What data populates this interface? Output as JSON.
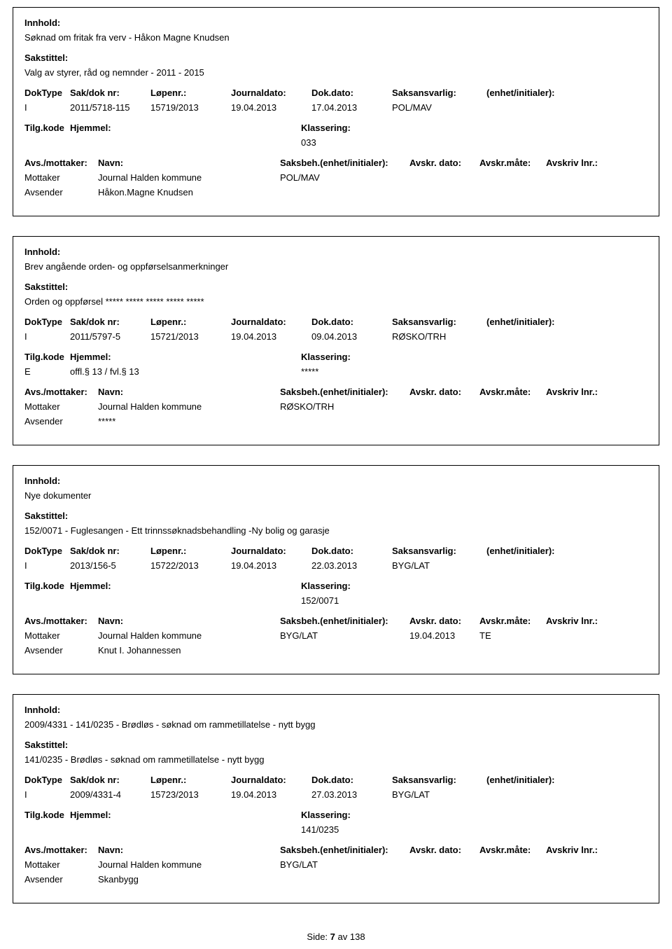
{
  "labels": {
    "innhold": "Innhold:",
    "sakstittel": "Sakstittel:",
    "doktype": "DokType",
    "sakdoknr": "Sak/dok nr:",
    "lopenr": "Løpenr.:",
    "journaldato": "Journaldato:",
    "dokdato": "Dok.dato:",
    "saksansvarlig": "Saksansvarlig:",
    "enhet": "(enhet/initialer):",
    "tilgkode": "Tilg.kode",
    "hjemmel": "Hjemmel:",
    "klassering": "Klassering:",
    "avsmottaker": "Avs./mottaker:",
    "navn": "Navn:",
    "saksbeh": "Saksbeh.",
    "saksbeh_enhet": "(enhet/initialer):",
    "avskrdato": "Avskr. dato:",
    "avskrmate": "Avskr.måte:",
    "avskrivlnr": "Avskriv lnr.:",
    "mottaker": "Mottaker",
    "avsender": "Avsender"
  },
  "records": [
    {
      "innhold": "Søknad om fritak fra verv - Håkon Magne Knudsen",
      "sakstittel": "Valg av styrer, råd og nemnder - 2011 - 2015",
      "doktype": "I",
      "sakdoknr": "2011/5718-115",
      "lopenr": "15719/2013",
      "journaldato": "19.04.2013",
      "dokdato": "17.04.2013",
      "saksansvarlig": "POL/MAV",
      "enhet": "",
      "tilgkode": "",
      "hjemmel": "",
      "klassering": "033",
      "parties": [
        {
          "role": "Mottaker",
          "navn": "Journal Halden kommune",
          "saksbeh": "POL/MAV",
          "avskrdato": "",
          "avskrmate": "",
          "avskrivlnr": ""
        },
        {
          "role": "Avsender",
          "navn": "Håkon.Magne Knudsen",
          "saksbeh": "",
          "avskrdato": "",
          "avskrmate": "",
          "avskrivlnr": ""
        }
      ]
    },
    {
      "innhold": "Brev angående orden- og oppførselsanmerkninger",
      "sakstittel": "Orden og oppførsel ***** ***** ***** ***** *****",
      "doktype": "I",
      "sakdoknr": "2011/5797-5",
      "lopenr": "15721/2013",
      "journaldato": "19.04.2013",
      "dokdato": "09.04.2013",
      "saksansvarlig": "RØSKO/TRH",
      "enhet": "",
      "tilgkode": "E",
      "hjemmel": "offl.§ 13 / fvl.§ 13",
      "klassering": "*****",
      "parties": [
        {
          "role": "Mottaker",
          "navn": "Journal Halden kommune",
          "saksbeh": "RØSKO/TRH",
          "avskrdato": "",
          "avskrmate": "",
          "avskrivlnr": ""
        },
        {
          "role": "Avsender",
          "navn": "*****",
          "saksbeh": "",
          "avskrdato": "",
          "avskrmate": "",
          "avskrivlnr": ""
        }
      ]
    },
    {
      "innhold": "Nye dokumenter",
      "sakstittel": "152/0071 - Fuglesangen - Ett trinnssøknadsbehandling -Ny bolig og garasje",
      "doktype": "I",
      "sakdoknr": "2013/156-5",
      "lopenr": "15722/2013",
      "journaldato": "19.04.2013",
      "dokdato": "22.03.2013",
      "saksansvarlig": "BYG/LAT",
      "enhet": "",
      "tilgkode": "",
      "hjemmel": "",
      "klassering": "152/0071",
      "parties": [
        {
          "role": "Mottaker",
          "navn": "Journal Halden kommune",
          "saksbeh": "BYG/LAT",
          "avskrdato": "19.04.2013",
          "avskrmate": "TE",
          "avskrivlnr": ""
        },
        {
          "role": "Avsender",
          "navn": "Knut I. Johannessen",
          "saksbeh": "",
          "avskrdato": "",
          "avskrmate": "",
          "avskrivlnr": ""
        }
      ]
    },
    {
      "innhold": "2009/4331 - 141/0235 - Brødløs - søknad om rammetillatelse - nytt bygg",
      "sakstittel": "141/0235 - Brødløs - søknad om rammetillatelse - nytt bygg",
      "doktype": "I",
      "sakdoknr": "2009/4331-4",
      "lopenr": "15723/2013",
      "journaldato": "19.04.2013",
      "dokdato": "27.03.2013",
      "saksansvarlig": "BYG/LAT",
      "enhet": "",
      "tilgkode": "",
      "hjemmel": "",
      "klassering": "141/0235",
      "parties": [
        {
          "role": "Mottaker",
          "navn": "Journal Halden kommune",
          "saksbeh": "BYG/LAT",
          "avskrdato": "",
          "avskrmate": "",
          "avskrivlnr": ""
        },
        {
          "role": "Avsender",
          "navn": "Skanbygg",
          "saksbeh": "",
          "avskrdato": "",
          "avskrmate": "",
          "avskrivlnr": ""
        }
      ]
    }
  ],
  "footer": {
    "side_label": "Side:",
    "page": "7",
    "av": "av",
    "total": "138"
  }
}
